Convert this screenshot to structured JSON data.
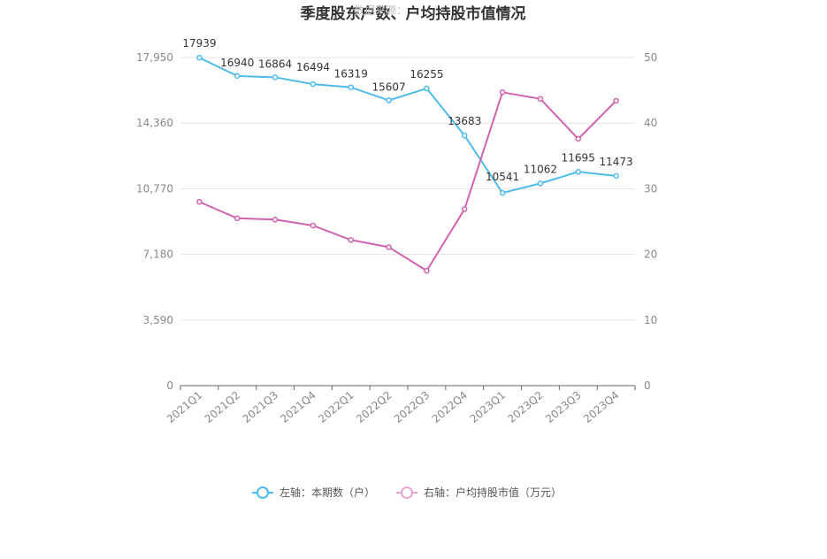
{
  "chart_data": {
    "type": "line",
    "title": "季度股东户数、户均持股市值情况",
    "watermark": "数据来源：",
    "categories": [
      "2021Q1",
      "2021Q2",
      "2021Q3",
      "2021Q4",
      "2022Q1",
      "2022Q2",
      "2022Q3",
      "2022Q4",
      "2023Q1",
      "2023Q2",
      "2023Q3",
      "2023Q4"
    ],
    "left_axis": {
      "min": 0,
      "max": 17950,
      "ticks": [
        0,
        3590,
        7180,
        10770,
        14360,
        17950
      ],
      "tick_labels": [
        "0",
        "3,590",
        "7,180",
        "10,770",
        "14,360",
        "17,950"
      ]
    },
    "right_axis": {
      "min": 0,
      "max": 50,
      "ticks": [
        0,
        10,
        20,
        30,
        40,
        50
      ],
      "tick_labels": [
        "0",
        "10",
        "20",
        "30",
        "40",
        "50"
      ]
    },
    "series": [
      {
        "name": "左轴：本期数（户）",
        "axis": "left",
        "color": "#4dbbeb",
        "values": [
          17939,
          16940,
          16864,
          16494,
          16319,
          15607,
          16255,
          13683,
          10541,
          11062,
          11695,
          11473
        ],
        "labels": [
          "17939",
          "16940",
          "16864",
          "16494",
          "16319",
          "15607",
          "16255",
          "13683",
          "10541",
          "11062",
          "11695",
          "11473"
        ]
      },
      {
        "name": "右轴：户均持股市值（万元）",
        "axis": "right",
        "color": "#d063b0",
        "values": [
          28.0,
          25.5,
          25.3,
          24.4,
          22.2,
          21.1,
          17.5,
          26.9,
          44.7,
          43.7,
          37.6,
          43.4
        ]
      }
    ],
    "legend_position": "bottom-center",
    "grid": true
  }
}
